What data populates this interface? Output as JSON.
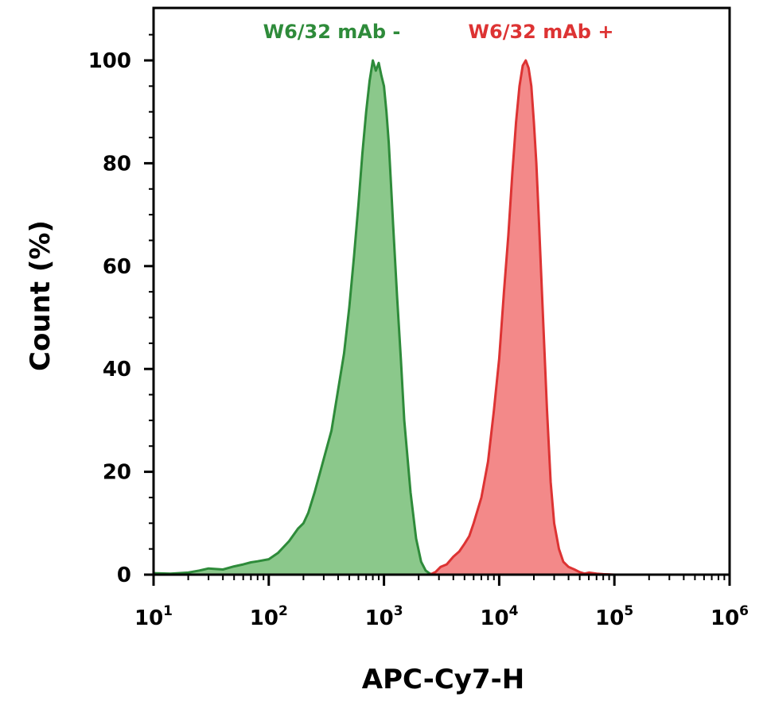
{
  "chart_data": {
    "type": "area",
    "title": "",
    "xlabel": "APC-Cy7-H",
    "ylabel": "Count (%)",
    "xscale": "log",
    "xlim": [
      10,
      1000000
    ],
    "ylim": [
      0,
      108
    ],
    "y_ticks": [
      0,
      20,
      40,
      60,
      80,
      100
    ],
    "x_ticks": [
      {
        "value": 10,
        "base": "10",
        "exp": "1"
      },
      {
        "value": 100,
        "base": "10",
        "exp": "2"
      },
      {
        "value": 1000,
        "base": "10",
        "exp": "3"
      },
      {
        "value": 10000,
        "base": "10",
        "exp": "4"
      },
      {
        "value": 100000,
        "base": "10",
        "exp": "5"
      },
      {
        "value": 1000000,
        "base": "10",
        "exp": "6"
      }
    ],
    "grid": false,
    "legend": "top",
    "series": [
      {
        "name": "W6/32 mAb -",
        "color": "#2e8b3a",
        "fill": "#85c585",
        "x": [
          10,
          14,
          20,
          25,
          30,
          40,
          50,
          60,
          70,
          80,
          100,
          120,
          150,
          180,
          200,
          220,
          250,
          280,
          300,
          350,
          400,
          450,
          500,
          550,
          600,
          650,
          700,
          750,
          800,
          850,
          900,
          950,
          1000,
          1050,
          1100,
          1150,
          1200,
          1300,
          1400,
          1500,
          1700,
          1900,
          2100,
          2300,
          2500,
          2800
        ],
        "y": [
          0.3,
          0.2,
          0.4,
          0.8,
          1.2,
          1.0,
          1.6,
          2.0,
          2.4,
          2.6,
          3.0,
          4.2,
          6.5,
          9.0,
          10.0,
          12.0,
          16.0,
          20.0,
          22.5,
          28.0,
          36.0,
          43.0,
          52.0,
          62.0,
          72.0,
          82.0,
          90.0,
          96.0,
          100.0,
          98.0,
          99.5,
          97.0,
          95.0,
          90.0,
          84.0,
          76.0,
          68.0,
          54.0,
          42.0,
          30.0,
          16.0,
          7.0,
          2.5,
          0.8,
          0.2,
          0.0
        ]
      },
      {
        "name": "W6/32 mAb +",
        "color": "#dd3333",
        "fill": "#f28383",
        "x": [
          2500,
          2800,
          3100,
          3500,
          4000,
          4500,
          5000,
          5500,
          6000,
          7000,
          8000,
          9000,
          10000,
          11000,
          12000,
          13000,
          14000,
          15000,
          16000,
          17000,
          18000,
          19000,
          20000,
          21000,
          22000,
          24000,
          26000,
          28000,
          30000,
          33000,
          36000,
          40000,
          45000,
          50000,
          55000,
          60000,
          70000,
          80000,
          100000
        ],
        "y": [
          0.0,
          0.5,
          1.5,
          2.0,
          3.5,
          4.5,
          6.0,
          7.5,
          10.0,
          15.0,
          22.0,
          32.0,
          42.0,
          55.0,
          66.0,
          78.0,
          88.0,
          95.0,
          99.0,
          100.0,
          98.5,
          95.0,
          88.0,
          80.0,
          70.0,
          50.0,
          32.0,
          18.0,
          10.0,
          5.0,
          2.5,
          1.5,
          1.0,
          0.5,
          0.2,
          0.4,
          0.2,
          0.1,
          0.0
        ]
      }
    ]
  }
}
